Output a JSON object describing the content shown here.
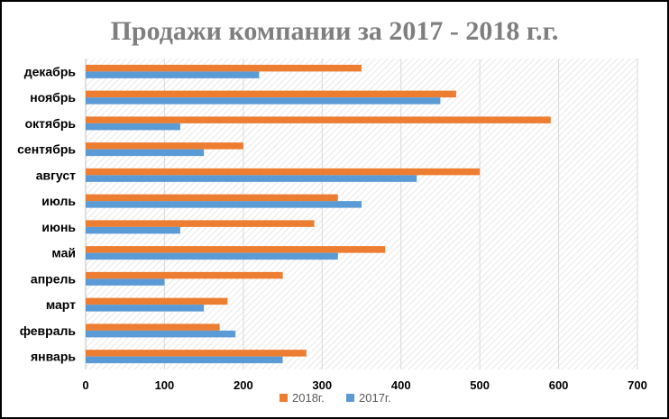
{
  "chart_data": {
    "type": "bar",
    "orientation": "horizontal",
    "title": "Продажи компании за 2017 - 2018 г.г.",
    "categories": [
      "январь",
      "февраль",
      "март",
      "апрель",
      "май",
      "июнь",
      "июль",
      "август",
      "сентябрь",
      "октябрь",
      "ноябрь",
      "декабрь"
    ],
    "series": [
      {
        "name": "2018г.",
        "color": "#ed7d31",
        "values": [
          280,
          170,
          180,
          250,
          380,
          290,
          320,
          500,
          200,
          590,
          470,
          350
        ]
      },
      {
        "name": "2017г.",
        "color": "#5b9bd5",
        "values": [
          250,
          190,
          150,
          100,
          320,
          120,
          350,
          420,
          150,
          120,
          450,
          220
        ]
      }
    ],
    "xlim": [
      0,
      700
    ],
    "xticks": [
      0,
      100,
      200,
      300,
      400,
      500,
      600,
      700
    ],
    "grid": true,
    "legend": "bottom",
    "plot_background": "hatched"
  }
}
